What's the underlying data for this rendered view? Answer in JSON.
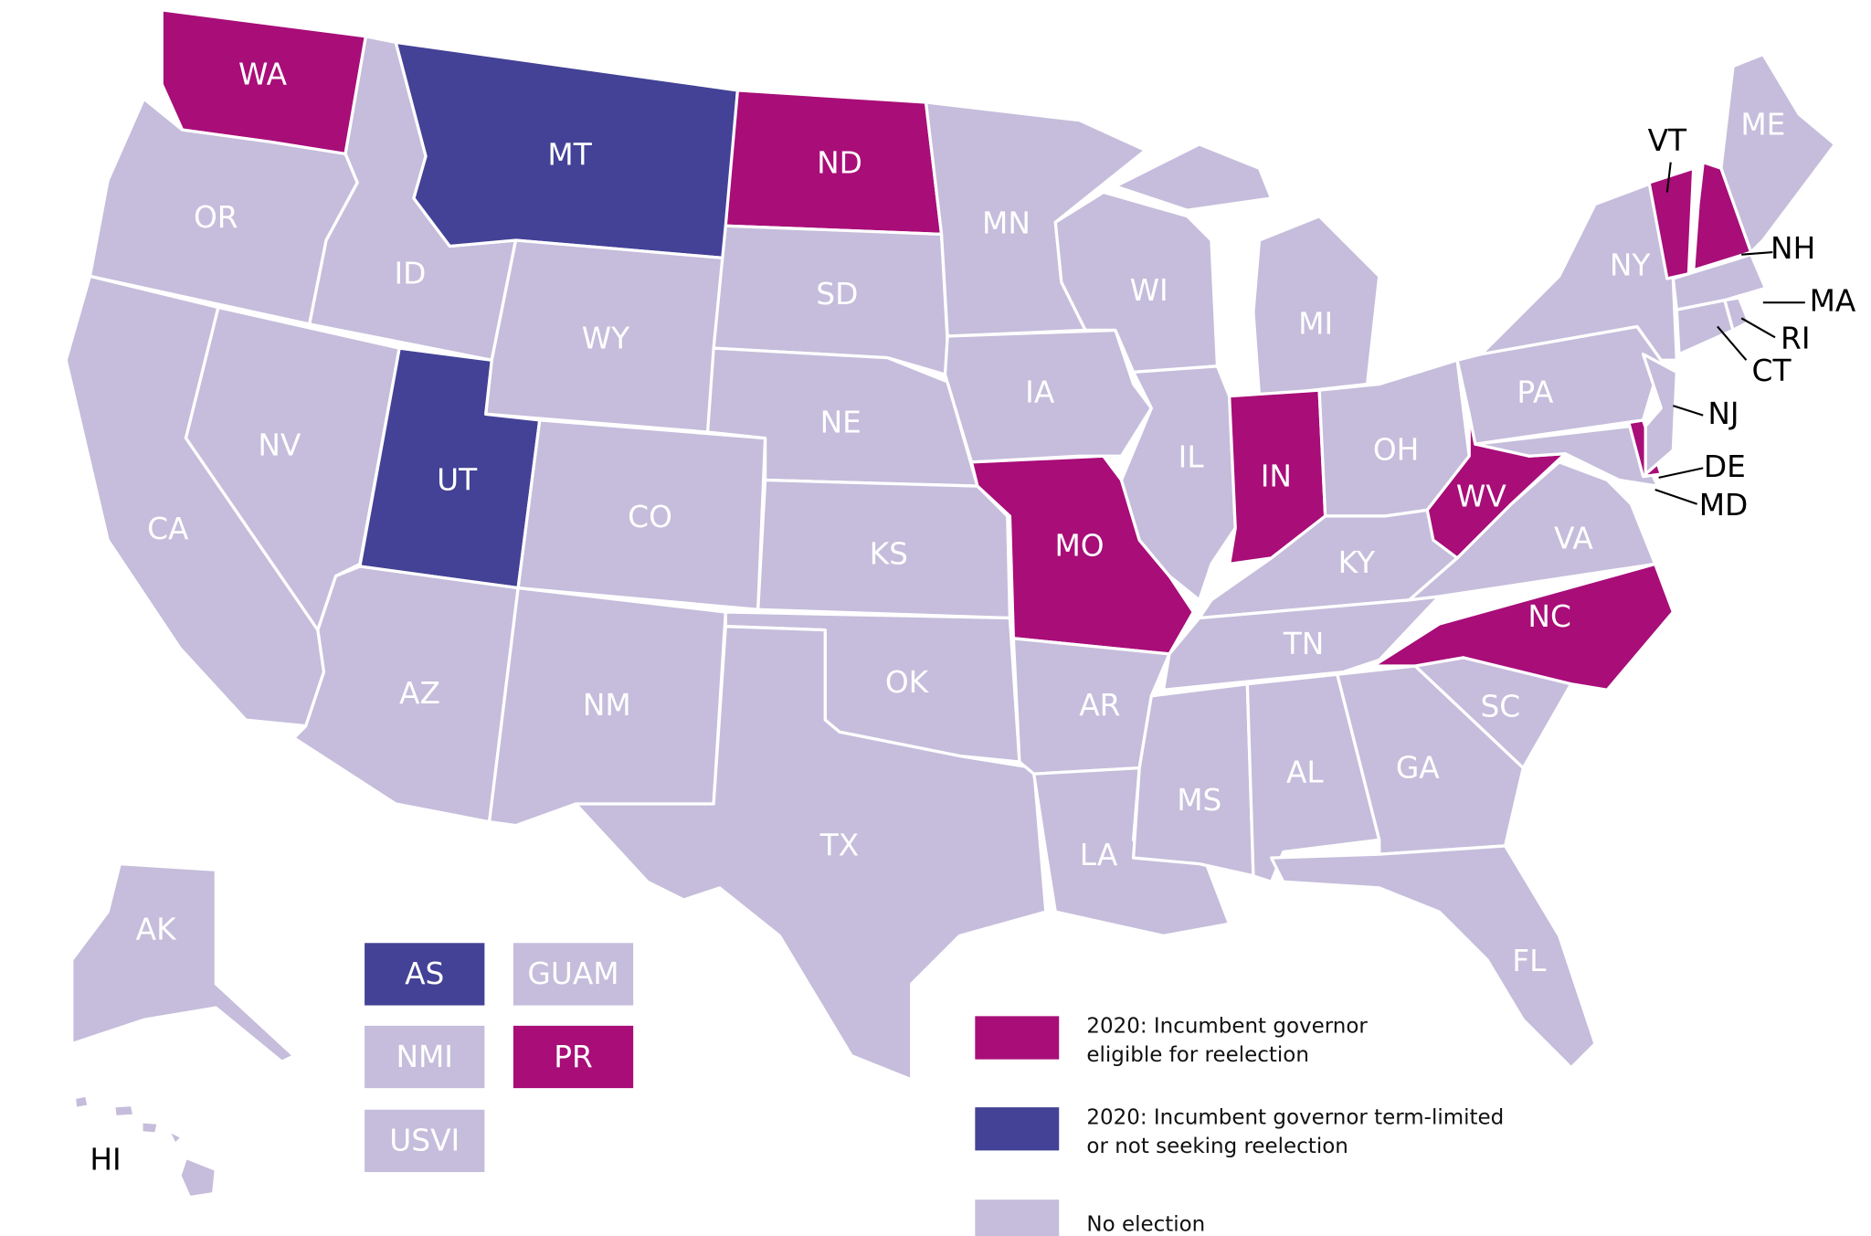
{
  "colors": {
    "eligible": "#a80d78",
    "term_limited": "#434296",
    "no_election": "#c5bddb",
    "border": "#ffffff"
  },
  "states": [
    {
      "code": "WA",
      "status": "eligible"
    },
    {
      "code": "OR",
      "status": "no_election"
    },
    {
      "code": "CA",
      "status": "no_election"
    },
    {
      "code": "NV",
      "status": "no_election"
    },
    {
      "code": "ID",
      "status": "no_election"
    },
    {
      "code": "MT",
      "status": "term_limited"
    },
    {
      "code": "WY",
      "status": "no_election"
    },
    {
      "code": "UT",
      "status": "term_limited"
    },
    {
      "code": "CO",
      "status": "no_election"
    },
    {
      "code": "AZ",
      "status": "no_election"
    },
    {
      "code": "NM",
      "status": "no_election"
    },
    {
      "code": "ND",
      "status": "eligible"
    },
    {
      "code": "SD",
      "status": "no_election"
    },
    {
      "code": "NE",
      "status": "no_election"
    },
    {
      "code": "KS",
      "status": "no_election"
    },
    {
      "code": "OK",
      "status": "no_election"
    },
    {
      "code": "TX",
      "status": "no_election"
    },
    {
      "code": "MN",
      "status": "no_election"
    },
    {
      "code": "IA",
      "status": "no_election"
    },
    {
      "code": "MO",
      "status": "eligible"
    },
    {
      "code": "AR",
      "status": "no_election"
    },
    {
      "code": "LA",
      "status": "no_election"
    },
    {
      "code": "WI",
      "status": "no_election"
    },
    {
      "code": "IL",
      "status": "no_election"
    },
    {
      "code": "MI",
      "status": "no_election"
    },
    {
      "code": "IN",
      "status": "eligible"
    },
    {
      "code": "OH",
      "status": "no_election"
    },
    {
      "code": "KY",
      "status": "no_election"
    },
    {
      "code": "TN",
      "status": "no_election"
    },
    {
      "code": "MS",
      "status": "no_election"
    },
    {
      "code": "AL",
      "status": "no_election"
    },
    {
      "code": "GA",
      "status": "no_election"
    },
    {
      "code": "FL",
      "status": "no_election"
    },
    {
      "code": "SC",
      "status": "no_election"
    },
    {
      "code": "NC",
      "status": "eligible"
    },
    {
      "code": "VA",
      "status": "no_election"
    },
    {
      "code": "WV",
      "status": "eligible"
    },
    {
      "code": "MD",
      "status": "no_election"
    },
    {
      "code": "DE",
      "status": "eligible"
    },
    {
      "code": "PA",
      "status": "no_election"
    },
    {
      "code": "NJ",
      "status": "no_election"
    },
    {
      "code": "NY",
      "status": "no_election"
    },
    {
      "code": "VT",
      "status": "eligible"
    },
    {
      "code": "NH",
      "status": "eligible"
    },
    {
      "code": "MA",
      "status": "no_election"
    },
    {
      "code": "CT",
      "status": "no_election"
    },
    {
      "code": "RI",
      "status": "no_election"
    },
    {
      "code": "ME",
      "status": "no_election"
    },
    {
      "code": "AK",
      "status": "no_election"
    },
    {
      "code": "HI",
      "status": "no_election"
    }
  ],
  "territories": [
    {
      "code": "AS",
      "status": "term_limited"
    },
    {
      "code": "GUAM",
      "status": "no_election"
    },
    {
      "code": "NMI",
      "status": "no_election"
    },
    {
      "code": "PR",
      "status": "eligible"
    },
    {
      "code": "USVI",
      "status": "no_election"
    }
  ],
  "legend": [
    {
      "status": "eligible",
      "line1": "2020: Incumbent governor",
      "line2": "eligible for reelection"
    },
    {
      "status": "term_limited",
      "line1": "2020: Incumbent governor term-limited",
      "line2": "or not seeking reelection"
    },
    {
      "status": "no_election",
      "line1": "No election",
      "line2": ""
    }
  ]
}
